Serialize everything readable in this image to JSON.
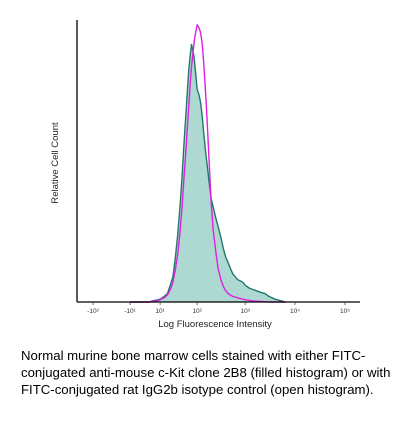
{
  "chart_data": {
    "type": "area",
    "xlabel": "Log Fluorescence Intensity",
    "ylabel": "Relative Cell Count",
    "x_scale": "log",
    "x_tick_labels": [
      "-10²",
      "-10¹",
      "10¹",
      "10²",
      "10³",
      "10⁴",
      "10⁵"
    ],
    "grid": false,
    "legend": "none",
    "series": [
      {
        "style": "filled",
        "fill_color": "#aed8d2",
        "line_color": "#1f7a6c",
        "points": [
          [
            -10,
            0.0
          ],
          [
            -6,
            0.0
          ],
          [
            -2,
            0.0
          ],
          [
            0,
            0.0
          ],
          [
            2,
            0.0
          ],
          [
            5,
            0.005
          ],
          [
            8,
            0.008
          ],
          [
            10,
            0.01
          ],
          [
            14,
            0.02
          ],
          [
            18,
            0.03
          ],
          [
            22,
            0.06
          ],
          [
            26,
            0.09
          ],
          [
            30,
            0.15
          ],
          [
            35,
            0.24
          ],
          [
            40,
            0.34
          ],
          [
            45,
            0.45
          ],
          [
            50,
            0.56
          ],
          [
            55,
            0.66
          ],
          [
            60,
            0.75
          ],
          [
            65,
            0.83
          ],
          [
            70,
            0.88
          ],
          [
            75,
            0.92
          ],
          [
            80,
            0.9
          ],
          [
            85,
            0.88
          ],
          [
            90,
            0.84
          ],
          [
            95,
            0.8
          ],
          [
            100,
            0.76
          ],
          [
            110,
            0.74
          ],
          [
            120,
            0.71
          ],
          [
            130,
            0.66
          ],
          [
            140,
            0.6
          ],
          [
            150,
            0.55
          ],
          [
            160,
            0.51
          ],
          [
            170,
            0.47
          ],
          [
            180,
            0.43
          ],
          [
            190,
            0.4
          ],
          [
            200,
            0.37
          ],
          [
            220,
            0.34
          ],
          [
            250,
            0.3
          ],
          [
            280,
            0.27
          ],
          [
            320,
            0.23
          ],
          [
            360,
            0.19
          ],
          [
            400,
            0.16
          ],
          [
            450,
            0.14
          ],
          [
            500,
            0.12
          ],
          [
            560,
            0.1
          ],
          [
            630,
            0.09
          ],
          [
            700,
            0.08
          ],
          [
            800,
            0.075
          ],
          [
            900,
            0.07
          ],
          [
            1000,
            0.06
          ],
          [
            1200,
            0.05
          ],
          [
            1400,
            0.045
          ],
          [
            1700,
            0.04
          ],
          [
            2000,
            0.035
          ],
          [
            2500,
            0.03
          ],
          [
            3000,
            0.02
          ],
          [
            4000,
            0.01
          ],
          [
            5000,
            0.005
          ],
          [
            6500,
            0.0
          ]
        ]
      },
      {
        "style": "open",
        "line_color": "#e020e0",
        "points": [
          [
            -10,
            0.0
          ],
          [
            -6,
            0.0
          ],
          [
            -2,
            0.0
          ],
          [
            0,
            0.0
          ],
          [
            2,
            0.0
          ],
          [
            5,
            0.003
          ],
          [
            8,
            0.005
          ],
          [
            10,
            0.008
          ],
          [
            14,
            0.015
          ],
          [
            18,
            0.025
          ],
          [
            22,
            0.045
          ],
          [
            26,
            0.07
          ],
          [
            30,
            0.11
          ],
          [
            35,
            0.17
          ],
          [
            40,
            0.25
          ],
          [
            45,
            0.34
          ],
          [
            50,
            0.44
          ],
          [
            55,
            0.53
          ],
          [
            60,
            0.62
          ],
          [
            65,
            0.7
          ],
          [
            70,
            0.78
          ],
          [
            75,
            0.84
          ],
          [
            80,
            0.88
          ],
          [
            85,
            0.92
          ],
          [
            90,
            0.95
          ],
          [
            95,
            0.97
          ],
          [
            100,
            0.99
          ],
          [
            110,
            0.98
          ],
          [
            120,
            0.96
          ],
          [
            130,
            0.92
          ],
          [
            140,
            0.85
          ],
          [
            150,
            0.77
          ],
          [
            160,
            0.69
          ],
          [
            170,
            0.6
          ],
          [
            180,
            0.51
          ],
          [
            190,
            0.43
          ],
          [
            200,
            0.36
          ],
          [
            220,
            0.26
          ],
          [
            250,
            0.18
          ],
          [
            280,
            0.12
          ],
          [
            320,
            0.08
          ],
          [
            360,
            0.055
          ],
          [
            400,
            0.04
          ],
          [
            450,
            0.03
          ],
          [
            500,
            0.025
          ],
          [
            560,
            0.02
          ],
          [
            630,
            0.018
          ],
          [
            700,
            0.015
          ],
          [
            800,
            0.012
          ],
          [
            900,
            0.01
          ],
          [
            1000,
            0.008
          ],
          [
            1200,
            0.006
          ],
          [
            1400,
            0.004
          ],
          [
            1700,
            0.003
          ],
          [
            2000,
            0.002
          ],
          [
            2500,
            0.001
          ],
          [
            3000,
            0.0
          ],
          [
            4000,
            0.0
          ],
          [
            5000,
            0.0
          ],
          [
            6500,
            0.0
          ]
        ]
      }
    ]
  },
  "caption": "Normal murine bone marrow cells stained with either FITC-conjugated anti-mouse c-Kit clone 2B8 (filled histogram) or with FITC-conjugated rat IgG2b isotype control (open histogram)."
}
